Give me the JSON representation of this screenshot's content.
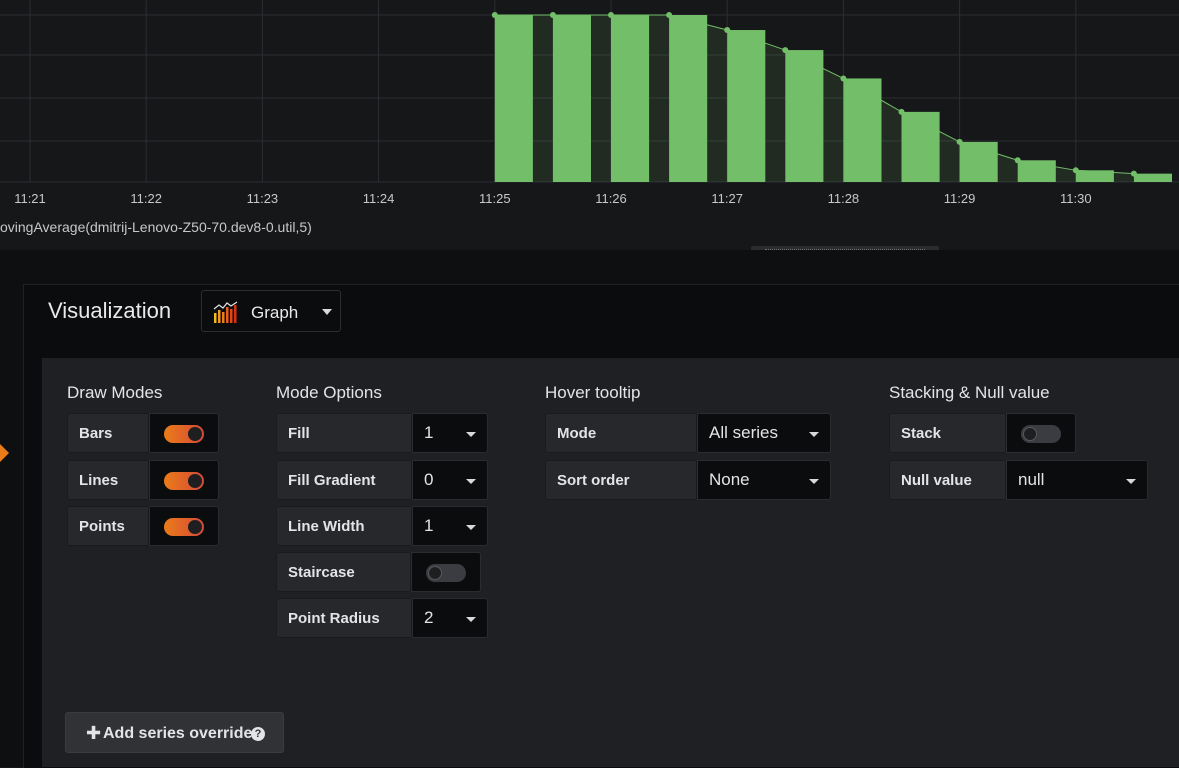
{
  "chart_data": {
    "type": "bar",
    "series_color": "#73bf69",
    "point_color": "#73bf69",
    "x_ticks": [
      "11:21",
      "11:22",
      "11:23",
      "11:24",
      "11:25",
      "11:26",
      "11:27",
      "11:28",
      "11:29",
      "11:30"
    ],
    "bar_start_minutes": [
      4.0,
      4.5,
      5.0,
      5.5,
      6.0,
      6.5,
      7.0,
      7.5,
      8.0,
      8.5,
      9.0,
      9.5
    ],
    "values": [
      100,
      100,
      100,
      100,
      91,
      79,
      62,
      42,
      24,
      13,
      7,
      5
    ],
    "ylim": [
      0,
      100
    ],
    "legend": "ovingAverage(dmitrij-Lenovo-Z50-70.dev8-0.util,5)"
  },
  "visualization": {
    "label": "Visualization",
    "selected": "Graph",
    "icon": "graph-viz-icon"
  },
  "draw_modes": {
    "title": "Draw Modes",
    "items": [
      {
        "label": "Bars",
        "on": true
      },
      {
        "label": "Lines",
        "on": true
      },
      {
        "label": "Points",
        "on": true
      }
    ]
  },
  "mode_options": {
    "title": "Mode Options",
    "fill": {
      "label": "Fill",
      "value": "1"
    },
    "fill_gradient": {
      "label": "Fill Gradient",
      "value": "0"
    },
    "line_width": {
      "label": "Line Width",
      "value": "1"
    },
    "staircase": {
      "label": "Staircase",
      "on": false
    },
    "point_radius": {
      "label": "Point Radius",
      "value": "2"
    }
  },
  "hover_tooltip": {
    "title": "Hover tooltip",
    "mode": {
      "label": "Mode",
      "value": "All series"
    },
    "sort_order": {
      "label": "Sort order",
      "value": "None"
    }
  },
  "stacking": {
    "title": "Stacking & Null value",
    "stack": {
      "label": "Stack",
      "on": false
    },
    "null_value": {
      "label": "Null value",
      "value": "null"
    }
  },
  "add_override": {
    "label": "Add series override",
    "help": "?"
  },
  "colors": {
    "accent": "#eb7b18",
    "panel": "#1f2023",
    "bar": "#73bf69"
  }
}
